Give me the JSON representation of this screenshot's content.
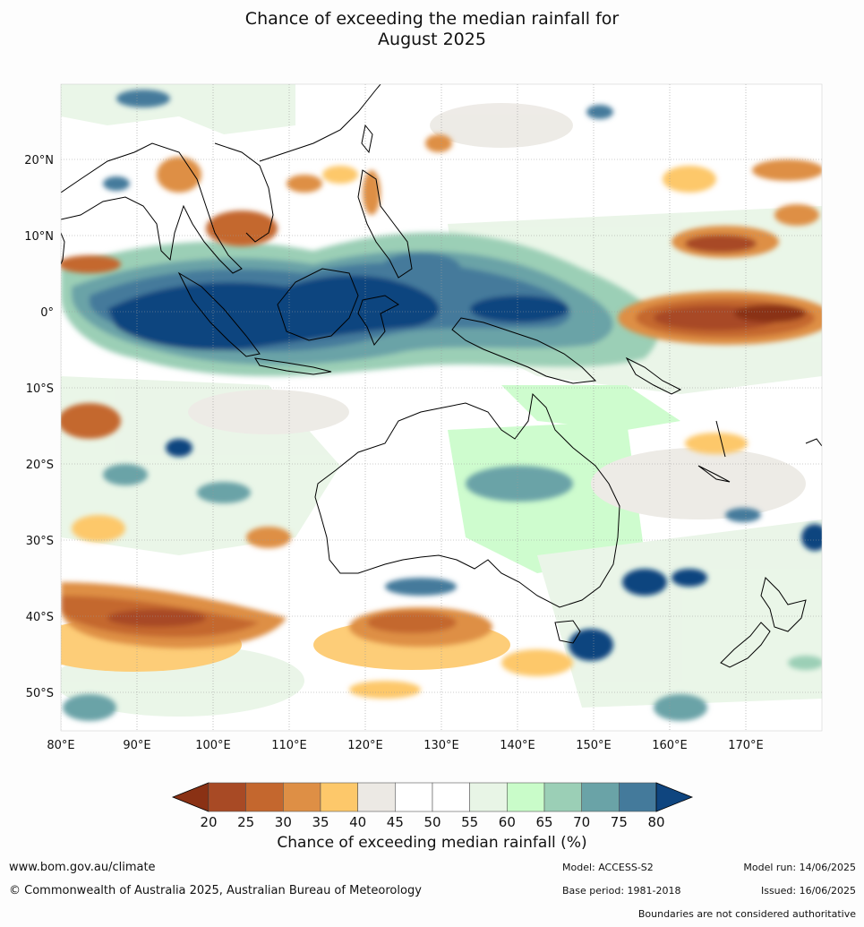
{
  "title_line1": "Chance of exceeding the median rainfall for",
  "title_line2": "August 2025",
  "lon_labels": [
    "80°E",
    "90°E",
    "100°E",
    "110°E",
    "120°E",
    "130°E",
    "140°E",
    "150°E",
    "160°E",
    "170°E"
  ],
  "lat_labels": [
    "20°N",
    "10°N",
    "0°",
    "10°S",
    "20°S",
    "30°S",
    "40°S",
    "50°S"
  ],
  "colorbar": {
    "ticks": [
      "20",
      "25",
      "30",
      "35",
      "40",
      "45",
      "50",
      "55",
      "60",
      "65",
      "70",
      "75",
      "80"
    ],
    "under_color": "#8a3114",
    "over_color": "#0f457f",
    "colors": [
      "#a84a25",
      "#c4672e",
      "#de8f45",
      "#fdc86a",
      "#ece9e4",
      "#ffffff",
      "#ffffff",
      "#e8f5e6",
      "#c9fcc9",
      "#9bcfb6",
      "#6aa3a7",
      "#447a9b"
    ],
    "label": "Chance of exceeding median rainfall (%)"
  },
  "footer": {
    "website": "www.bom.gov.au/climate",
    "copyright": "© Commonwealth of Australia 2025, Australian Bureau of Meteorology",
    "model": "Model: ACCESS-S2",
    "base_period": "Base period: 1981-2018",
    "model_run": "Model run: 14/06/2025",
    "issued": "Issued: 16/06/2025",
    "boundaries": "Boundaries are not considered authoritative"
  }
}
